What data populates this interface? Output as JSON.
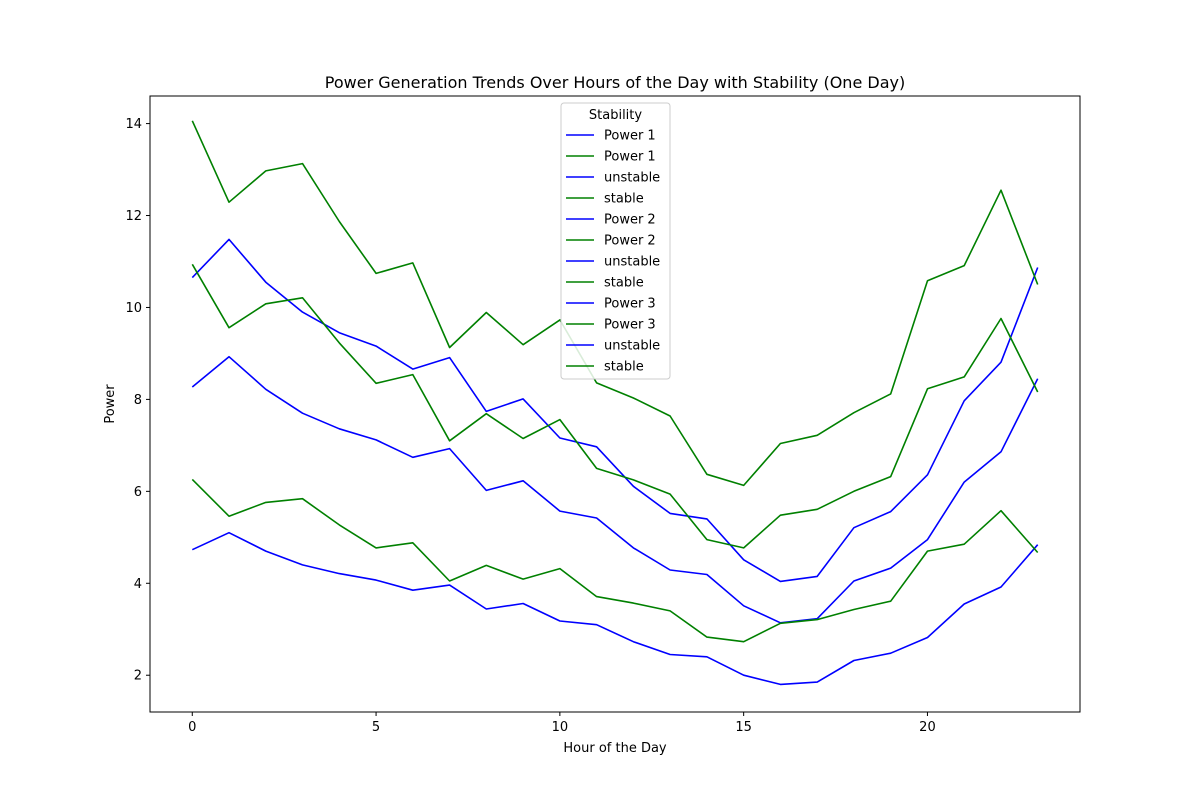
{
  "chart_data": {
    "type": "line",
    "title": "Power Generation Trends Over Hours of the Day with Stability (One Day)",
    "xlabel": "Hour of the Day",
    "ylabel": "Power",
    "xlim": [
      -1.15,
      24.15
    ],
    "ylim": [
      1.2,
      14.6
    ],
    "xticks": [
      0,
      5,
      10,
      15,
      20
    ],
    "yticks": [
      2,
      4,
      6,
      8,
      10,
      12,
      14
    ],
    "grid": false,
    "legend": {
      "title": "Stability",
      "placement": "upper center",
      "entries": [
        {
          "label": "Power 1",
          "color": "#0000ff"
        },
        {
          "label": "Power 1",
          "color": "#008000"
        },
        {
          "label": "unstable",
          "color": "#0000ff"
        },
        {
          "label": "stable",
          "color": "#008000"
        },
        {
          "label": "Power 2",
          "color": "#0000ff"
        },
        {
          "label": "Power 2",
          "color": "#008000"
        },
        {
          "label": "unstable",
          "color": "#0000ff"
        },
        {
          "label": "stable",
          "color": "#008000"
        },
        {
          "label": "Power 3",
          "color": "#0000ff"
        },
        {
          "label": "Power 3",
          "color": "#008000"
        },
        {
          "label": "unstable",
          "color": "#0000ff"
        },
        {
          "label": "stable",
          "color": "#008000"
        }
      ]
    },
    "x": [
      0,
      1,
      2,
      3,
      4,
      5,
      6,
      7,
      8,
      9,
      10,
      11,
      12,
      13,
      14,
      15,
      16,
      17,
      18,
      19,
      20,
      21,
      22,
      23
    ],
    "series": [
      {
        "name": "Power 1",
        "color": "#0000ff",
        "values": [
          10.65,
          11.48,
          10.55,
          9.9,
          9.45,
          9.16,
          8.66,
          8.91,
          7.74,
          8.01,
          7.16,
          6.97,
          6.11,
          5.52,
          5.4,
          4.51,
          4.04,
          4.15,
          5.21,
          5.56,
          6.36,
          7.97,
          8.81,
          10.87
        ]
      },
      {
        "name": "Power 1",
        "color": "#008000",
        "values": [
          14.06,
          12.29,
          12.97,
          13.13,
          11.87,
          10.74,
          10.97,
          9.13,
          9.89,
          9.19,
          9.73,
          8.36,
          8.03,
          7.64,
          6.37,
          6.13,
          7.04,
          7.22,
          7.71,
          8.12,
          10.58,
          10.91,
          12.55,
          10.5
        ]
      },
      {
        "name": "Power 2",
        "color": "#0000ff",
        "values": [
          8.27,
          8.93,
          8.22,
          7.7,
          7.36,
          7.12,
          6.74,
          6.93,
          6.02,
          6.23,
          5.57,
          5.42,
          4.77,
          4.29,
          4.19,
          3.51,
          3.14,
          3.23,
          4.05,
          4.33,
          4.95,
          6.2,
          6.86,
          8.45
        ]
      },
      {
        "name": "Power 2",
        "color": "#008000",
        "values": [
          10.94,
          9.56,
          10.08,
          10.21,
          9.23,
          8.35,
          8.54,
          7.1,
          7.69,
          7.15,
          7.56,
          6.5,
          6.25,
          5.94,
          4.95,
          4.77,
          5.48,
          5.61,
          6.0,
          6.32,
          8.23,
          8.49,
          9.76,
          8.16
        ]
      },
      {
        "name": "Power 3",
        "color": "#0000ff",
        "values": [
          4.73,
          5.1,
          4.7,
          4.4,
          4.21,
          4.07,
          3.85,
          3.96,
          3.44,
          3.56,
          3.18,
          3.1,
          2.73,
          2.45,
          2.4,
          2.0,
          1.8,
          1.85,
          2.32,
          2.48,
          2.82,
          3.55,
          3.92,
          4.84
        ]
      },
      {
        "name": "Power 3",
        "color": "#008000",
        "values": [
          6.26,
          5.46,
          5.76,
          5.84,
          5.27,
          4.77,
          4.88,
          4.05,
          4.39,
          4.09,
          4.32,
          3.71,
          3.57,
          3.4,
          2.83,
          2.73,
          3.13,
          3.21,
          3.43,
          3.61,
          4.7,
          4.85,
          5.58,
          4.67
        ]
      }
    ]
  }
}
